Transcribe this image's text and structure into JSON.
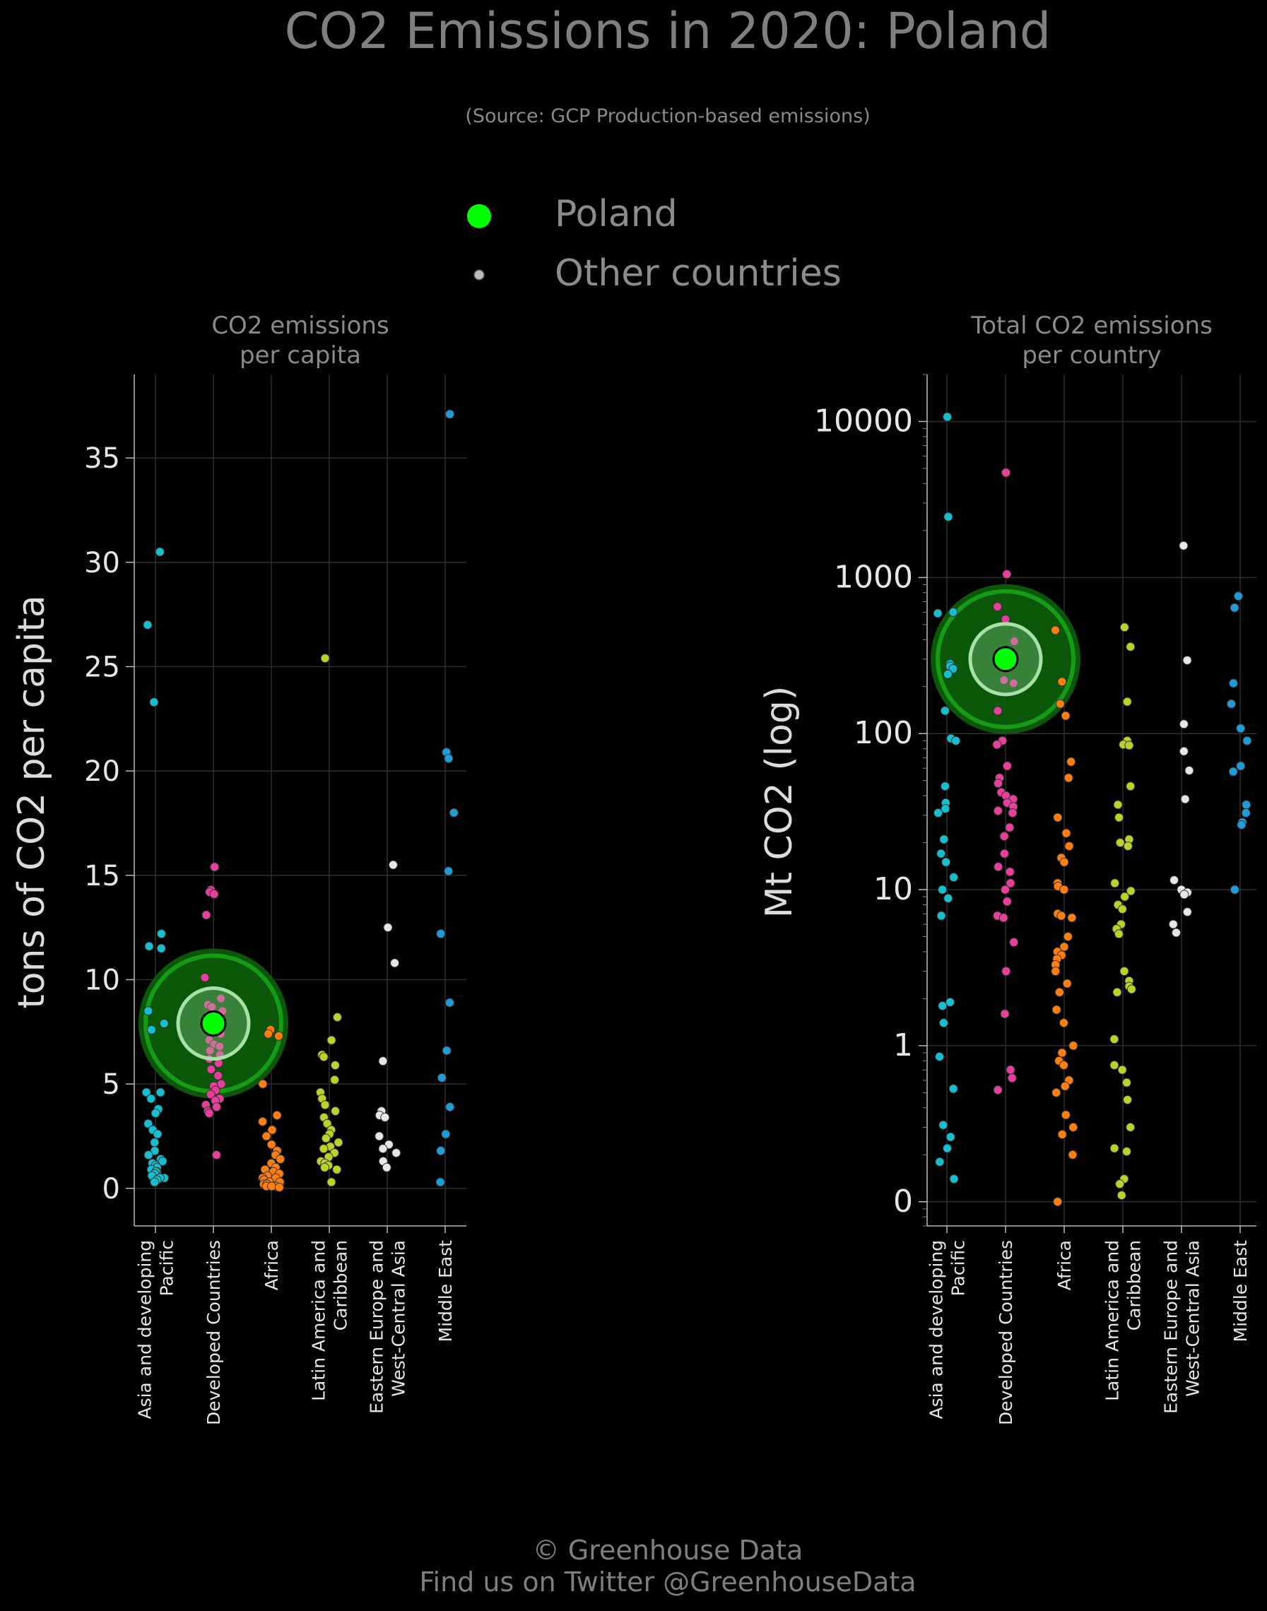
{
  "title": "CO2 Emissions in 2020: Poland",
  "subtitle": "(Source: GCP Production-based emissions)",
  "legend": {
    "highlight_label": "Poland",
    "other_label": "Other countries",
    "highlight_color": "#00ff00",
    "other_color": "#bbbbbb"
  },
  "footer": {
    "line1": "© Greenhouse Data",
    "line2": "Find us on Twitter @GreenhouseData"
  },
  "region_colors": {
    "Asia and developing Pacific": "#17becf",
    "Developed Countries": "#e83e9c",
    "Africa": "#ff7f0e",
    "Latin America and Caribbean": "#bcd22b",
    "Eastern Europe and West-Central Asia": "#e6e6e6",
    "Middle East": "#1f9bd7"
  },
  "chart_data": [
    {
      "type": "scatter",
      "title": "CO2 emissions\nper capita",
      "ylabel": "tons of CO2 per capita",
      "yscale": "linear",
      "ylim": [
        -1.8,
        39
      ],
      "yticks": [
        0,
        5,
        10,
        15,
        20,
        25,
        30,
        35
      ],
      "ytick_labels": [
        "0",
        "5",
        "10",
        "15",
        "20",
        "25",
        "30",
        "35"
      ],
      "grid": true,
      "categories": [
        "Asia and developing\nPacific",
        "Developed Countries",
        "Africa",
        "Latin America and\nCaribbean",
        "Eastern Europe and\nWest-Central Asia",
        "Middle East"
      ],
      "highlight": {
        "name": "Poland",
        "category_index": 1,
        "value": 7.9
      },
      "series": [
        {
          "region": "Asia and developing Pacific",
          "values": [
            30.5,
            27.0,
            23.3,
            12.2,
            11.6,
            11.5,
            8.5,
            7.9,
            7.6,
            4.6,
            4.6,
            4.3,
            3.8,
            3.6,
            3.1,
            2.8,
            2.6,
            2.2,
            1.8,
            1.6,
            1.4,
            1.3,
            1.2,
            1.1,
            1.0,
            0.9,
            0.8,
            0.8,
            0.7,
            0.6,
            0.5,
            0.5,
            0.4,
            0.3
          ]
        },
        {
          "region": "Developed Countries",
          "values": [
            15.4,
            14.3,
            14.2,
            14.1,
            13.1,
            10.1,
            9.1,
            8.8,
            8.7,
            8.5,
            8.3,
            7.9,
            7.7,
            7.4,
            7.1,
            6.9,
            6.8,
            6.6,
            6.4,
            6.2,
            6.0,
            5.7,
            5.4,
            5.0,
            4.9,
            4.7,
            4.5,
            4.3,
            4.2,
            4.0,
            3.9,
            3.7,
            3.6,
            1.6
          ]
        },
        {
          "region": "Africa",
          "values": [
            7.6,
            7.4,
            7.3,
            5.0,
            3.5,
            3.2,
            2.8,
            2.5,
            2.1,
            1.8,
            1.6,
            1.4,
            1.2,
            1.0,
            0.9,
            0.8,
            0.7,
            0.6,
            0.5,
            0.5,
            0.4,
            0.3,
            0.3,
            0.2,
            0.2,
            0.1,
            0.1,
            0.1,
            0.05
          ]
        },
        {
          "region": "Latin America and Caribbean",
          "values": [
            25.4,
            8.2,
            7.1,
            6.4,
            6.3,
            5.9,
            5.2,
            4.6,
            4.3,
            4.0,
            3.7,
            3.4,
            3.1,
            2.8,
            2.6,
            2.4,
            2.2,
            2.0,
            1.9,
            1.7,
            1.5,
            1.3,
            1.2,
            1.1,
            1.0,
            0.9,
            0.3
          ]
        },
        {
          "region": "Eastern Europe and West-Central Asia",
          "values": [
            15.5,
            12.5,
            10.8,
            6.1,
            3.7,
            3.5,
            3.4,
            2.5,
            2.1,
            1.9,
            1.7,
            1.3,
            1.0
          ]
        },
        {
          "region": "Middle East",
          "values": [
            37.1,
            20.9,
            20.6,
            18.0,
            15.2,
            12.2,
            8.9,
            6.6,
            5.3,
            3.9,
            2.6,
            1.8,
            0.3
          ]
        }
      ]
    },
    {
      "type": "scatter",
      "title": "Total CO2 emissions\nper country",
      "ylabel": "Mt CO2 (log)",
      "yscale": "log",
      "ylim": [
        0.07,
        20000
      ],
      "yticks": [
        0.1,
        1,
        10,
        100,
        1000,
        10000
      ],
      "ytick_labels": [
        "0",
        "1",
        "10",
        "100",
        "1000",
        "10000"
      ],
      "grid": true,
      "categories": [
        "Asia and developing\nPacific",
        "Developed Countries",
        "Africa",
        "Latin America and\nCaribbean",
        "Eastern Europe and\nWest-Central Asia",
        "Middle East"
      ],
      "highlight": {
        "name": "Poland",
        "category_index": 1,
        "value": 300
      },
      "series": [
        {
          "region": "Asia and developing Pacific",
          "values": [
            10700,
            2450,
            600,
            590,
            280,
            270,
            260,
            240,
            140,
            93,
            90,
            46,
            36,
            33,
            31,
            21,
            17,
            15,
            12,
            10,
            8.8,
            6.8,
            1.9,
            1.8,
            1.4,
            0.85,
            0.53,
            0.31,
            0.26,
            0.22,
            0.18,
            0.14
          ]
        },
        {
          "region": "Developed Countries",
          "values": [
            4700,
            1050,
            650,
            540,
            390,
            220,
            210,
            140,
            90,
            85,
            62,
            52,
            48,
            42,
            40,
            38,
            36,
            34,
            32,
            31,
            25,
            22,
            17,
            14,
            13,
            11,
            10,
            8.4,
            6.8,
            6.6,
            4.6,
            3.0,
            1.6,
            0.7,
            0.62,
            0.52
          ]
        },
        {
          "region": "Africa",
          "values": [
            460,
            215,
            155,
            130,
            66,
            52,
            29,
            23,
            19,
            16,
            15,
            11,
            10.5,
            10,
            7,
            6.8,
            6.6,
            5,
            4.3,
            4,
            3.8,
            3.6,
            3.3,
            3,
            2.5,
            2.2,
            1.7,
            1.4,
            1.0,
            0.9,
            0.8,
            0.75,
            0.6,
            0.55,
            0.5,
            0.36,
            0.3,
            0.27,
            0.2,
            0.1
          ]
        },
        {
          "region": "Latin America and Caribbean",
          "values": [
            480,
            360,
            160,
            90,
            85,
            84,
            46,
            35,
            29,
            21,
            20,
            19,
            11,
            9.8,
            9,
            8,
            7.5,
            6,
            5.6,
            5.2,
            3,
            2.6,
            2.4,
            2.3,
            2.2,
            1.1,
            0.75,
            0.7,
            0.58,
            0.45,
            0.3,
            0.22,
            0.21,
            0.14,
            0.13,
            0.11
          ]
        },
        {
          "region": "Eastern Europe and West-Central Asia",
          "values": [
            1600,
            295,
            115,
            77,
            58,
            38,
            11.5,
            10,
            9.6,
            9.3,
            7.2,
            6,
            5.3
          ]
        },
        {
          "region": "Middle East",
          "values": [
            760,
            640,
            210,
            155,
            108,
            90,
            62,
            57,
            35,
            31,
            27,
            26,
            10
          ]
        }
      ]
    }
  ]
}
